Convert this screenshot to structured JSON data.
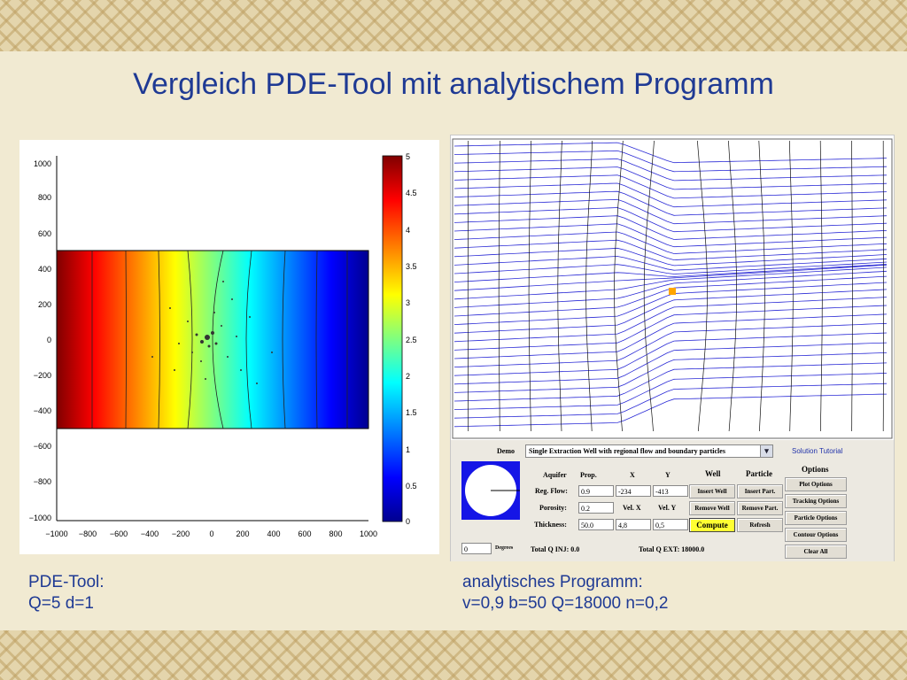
{
  "slide": {
    "title": "Vergleich PDE-Tool mit analytischem Programm",
    "caption_left": {
      "line1": "PDE-Tool:",
      "line2": "Q=5 d=1"
    },
    "caption_right": {
      "line1": "analytisches Programm:",
      "line2": "v=0,9 b=50 Q=18000 n=0,2"
    }
  },
  "pde_plot": {
    "colormap": "jet",
    "x_ticks": [
      "−1000",
      "−800",
      "−600",
      "−400",
      "−200",
      "0",
      "200",
      "400",
      "600",
      "800",
      "1000"
    ],
    "y_ticks": [
      "1000",
      "800",
      "600",
      "400",
      "200",
      "0",
      "−200",
      "−400",
      "−600",
      "−800",
      "−1000"
    ],
    "colorbar_ticks": [
      "5",
      "4.5",
      "4",
      "3.5",
      "3",
      "2.5",
      "2",
      "1.5",
      "1",
      "0.5",
      "0"
    ]
  },
  "analytic_plot": {
    "line_color": "#2b2bd6",
    "well_marker_color": "#ffa500"
  },
  "controls": {
    "demo_label": "Demo",
    "demo_selected": "Single Extraction Well with regional flow and boundary particles",
    "tutorial_link": "Solution Tutorial",
    "options_label": "Options",
    "headers": {
      "aquifer": "Aquifer",
      "prop": "Prop.",
      "x": "X",
      "y": "Y",
      "well": "Well",
      "particle": "Particle"
    },
    "rows": {
      "reg_flow": {
        "label": "Reg. Flow:",
        "prop": "0.9",
        "x": "-234",
        "y": "-413"
      },
      "porosity": {
        "label": "Porosity:",
        "prop": "0.2",
        "velx_label": "Vel. X",
        "vely_label": "Vel. Y"
      },
      "thickness": {
        "label": "Thickness:",
        "prop": "50.0",
        "velx": "4,8",
        "vely": "0,5"
      }
    },
    "buttons": {
      "insert_well": "Insert Well",
      "remove_well": "Remove Well",
      "compute": "Compute",
      "insert_part": "Insert Part.",
      "remove_part": "Remove Part.",
      "refresh": "Refresh",
      "plot_options": "Plot Options",
      "tracking_options": "Tracking Options",
      "particle_options": "Particle Options",
      "contour_options": "Contour Options",
      "clear_all": "Clear All"
    },
    "degrees_value": "0",
    "degrees_label": "Degrees",
    "total_inj": "Total Q INJ: 0.0",
    "total_ext": "Total Q EXT: 18000.0"
  }
}
